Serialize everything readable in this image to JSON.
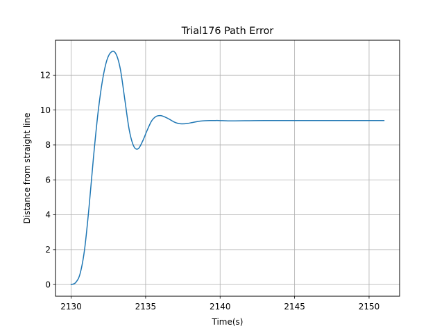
{
  "chart_data": {
    "type": "line",
    "title": "Trial176 Path Error",
    "xlabel": "Time(s)",
    "ylabel": "Distance from straight line",
    "xlim": [
      2128.95,
      2152.05
    ],
    "ylim": [
      -0.67,
      14.0
    ],
    "xticks": [
      2130,
      2135,
      2140,
      2145,
      2150
    ],
    "yticks": [
      0,
      2,
      4,
      6,
      8,
      10,
      12
    ],
    "grid": true,
    "legend": "none",
    "series": [
      {
        "color": "#1f77b4",
        "x": [
          2130.0,
          2130.3,
          2130.6,
          2130.9,
          2131.2,
          2131.5,
          2131.8,
          2132.1,
          2132.4,
          2132.7,
          2133.0,
          2133.3,
          2133.6,
          2133.9,
          2134.2,
          2134.5,
          2134.8,
          2135.1,
          2135.4,
          2135.7,
          2136.0,
          2136.3,
          2136.6,
          2136.9,
          2137.2,
          2137.5,
          2137.8,
          2138.1,
          2138.4,
          2138.7,
          2139.0,
          2139.3,
          2139.6,
          2139.9,
          2140.5,
          2141.0,
          2142.0,
          2143.0,
          2145.0,
          2147.0,
          2149.0,
          2151.0
        ],
        "y": [
          0.0,
          0.11,
          0.62,
          2.0,
          4.42,
          7.29,
          9.81,
          11.68,
          12.86,
          13.33,
          13.23,
          12.36,
          10.62,
          8.86,
          7.93,
          7.78,
          8.22,
          8.83,
          9.37,
          9.63,
          9.68,
          9.6,
          9.47,
          9.32,
          9.23,
          9.21,
          9.23,
          9.28,
          9.33,
          9.37,
          9.39,
          9.4,
          9.4,
          9.4,
          9.38,
          9.38,
          9.39,
          9.4,
          9.4,
          9.4,
          9.4,
          9.4
        ]
      }
    ]
  }
}
